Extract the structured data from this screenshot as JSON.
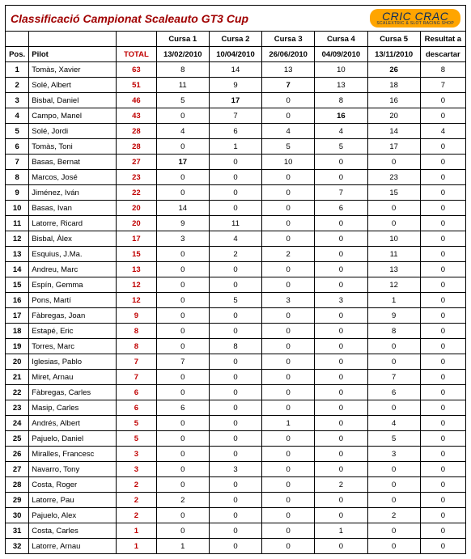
{
  "title": "Classificació Campionat Scaleauto GT3 Cup",
  "logo_main": "CRIC CRAC",
  "logo_sub": "SCALEXTRIC & SLOT RACING SHOP",
  "headers": {
    "pos": "Pos.",
    "pilot": "Pilot",
    "total": "TOTAL",
    "races_top": [
      "Cursa 1",
      "Cursa 2",
      "Cursa 3",
      "Cursa 4",
      "Cursa 5"
    ],
    "races_date": [
      "13/02/2010",
      "10/04/2010",
      "26/06/2010",
      "04/09/2010",
      "13/11/2010"
    ],
    "discard_top": "Resultat a",
    "discard_bot": "descartar"
  },
  "colors": {
    "total_text": "#c00000",
    "title_text": "#a00000",
    "logo_bg": "#ffa500",
    "logo_fg": "#0b2a5c"
  },
  "bold_cells": [
    [
      2,
      2
    ],
    [
      7,
      0
    ],
    [
      3,
      1
    ],
    [
      4,
      3
    ],
    [
      1,
      4
    ]
  ],
  "rows": [
    {
      "pos": 1,
      "pilot": "Tomàs, Xavier",
      "total": 63,
      "r": [
        8,
        14,
        "13",
        10,
        "26"
      ],
      "d": 8
    },
    {
      "pos": 2,
      "pilot": "Solé, Albert",
      "total": 51,
      "r": [
        11,
        9,
        7,
        13,
        18
      ],
      "d": 7
    },
    {
      "pos": 3,
      "pilot": "Bisbal, Daniel",
      "total": 46,
      "r": [
        5,
        "17",
        0,
        8,
        16
      ],
      "d": 0
    },
    {
      "pos": 4,
      "pilot": "Campo, Manel",
      "total": 43,
      "r": [
        0,
        7,
        0,
        "16",
        20
      ],
      "d": 0
    },
    {
      "pos": 5,
      "pilot": "Solé, Jordi",
      "total": 28,
      "r": [
        4,
        6,
        4,
        4,
        14
      ],
      "d": 4
    },
    {
      "pos": 6,
      "pilot": "Tomàs, Toni",
      "total": 28,
      "r": [
        0,
        1,
        5,
        5,
        17
      ],
      "d": 0
    },
    {
      "pos": 7,
      "pilot": "Basas, Bernat",
      "total": 27,
      "r": [
        "17",
        0,
        10,
        0,
        0
      ],
      "d": 0
    },
    {
      "pos": 8,
      "pilot": "Marcos, José",
      "total": 23,
      "r": [
        0,
        0,
        0,
        0,
        23
      ],
      "d": 0
    },
    {
      "pos": 9,
      "pilot": "Jiménez, Iván",
      "total": 22,
      "r": [
        0,
        0,
        0,
        7,
        15
      ],
      "d": 0
    },
    {
      "pos": 10,
      "pilot": "Basas, Ivan",
      "total": 20,
      "r": [
        14,
        0,
        0,
        6,
        0
      ],
      "d": 0
    },
    {
      "pos": 11,
      "pilot": "Latorre, Ricard",
      "total": 20,
      "r": [
        9,
        11,
        0,
        0,
        0
      ],
      "d": 0
    },
    {
      "pos": 12,
      "pilot": "Bisbal, Àlex",
      "total": 17,
      "r": [
        3,
        4,
        0,
        0,
        10
      ],
      "d": 0
    },
    {
      "pos": 13,
      "pilot": "Esquius, J.Ma.",
      "total": 15,
      "r": [
        0,
        2,
        2,
        0,
        11
      ],
      "d": 0
    },
    {
      "pos": 14,
      "pilot": "Andreu, Marc",
      "total": 13,
      "r": [
        0,
        0,
        0,
        0,
        13
      ],
      "d": 0
    },
    {
      "pos": 15,
      "pilot": "Espín, Gemma",
      "total": 12,
      "r": [
        0,
        0,
        0,
        0,
        12
      ],
      "d": 0
    },
    {
      "pos": 16,
      "pilot": "Pons, Martí",
      "total": 12,
      "r": [
        0,
        5,
        3,
        3,
        1
      ],
      "d": 0
    },
    {
      "pos": 17,
      "pilot": "Fàbregas, Joan",
      "total": 9,
      "r": [
        0,
        0,
        0,
        0,
        9
      ],
      "d": 0
    },
    {
      "pos": 18,
      "pilot": "Estapé, Eric",
      "total": 8,
      "r": [
        0,
        0,
        0,
        0,
        8
      ],
      "d": 0
    },
    {
      "pos": 19,
      "pilot": "Torres, Marc",
      "total": 8,
      "r": [
        0,
        8,
        0,
        0,
        0
      ],
      "d": 0
    },
    {
      "pos": 20,
      "pilot": "Iglesias, Pablo",
      "total": 7,
      "r": [
        7,
        0,
        0,
        0,
        0
      ],
      "d": 0
    },
    {
      "pos": 21,
      "pilot": "Miret, Arnau",
      "total": 7,
      "r": [
        0,
        0,
        0,
        0,
        7
      ],
      "d": 0
    },
    {
      "pos": 22,
      "pilot": "Fàbregas, Carles",
      "total": 6,
      "r": [
        0,
        0,
        0,
        0,
        6
      ],
      "d": 0
    },
    {
      "pos": 23,
      "pilot": "Masip, Carles",
      "total": 6,
      "r": [
        6,
        0,
        0,
        0,
        0
      ],
      "d": 0
    },
    {
      "pos": 24,
      "pilot": "Andrés, Albert",
      "total": 5,
      "r": [
        0,
        0,
        1,
        0,
        4
      ],
      "d": 0
    },
    {
      "pos": 25,
      "pilot": "Pajuelo, Daniel",
      "total": 5,
      "r": [
        0,
        0,
        0,
        0,
        5
      ],
      "d": 0
    },
    {
      "pos": 26,
      "pilot": "Miralles, Francesc",
      "total": 3,
      "r": [
        0,
        0,
        0,
        0,
        3
      ],
      "d": 0
    },
    {
      "pos": 27,
      "pilot": "Navarro, Tony",
      "total": 3,
      "r": [
        0,
        3,
        0,
        0,
        0
      ],
      "d": 0
    },
    {
      "pos": 28,
      "pilot": "Costa, Roger",
      "total": 2,
      "r": [
        0,
        0,
        0,
        2,
        0
      ],
      "d": 0
    },
    {
      "pos": 29,
      "pilot": "Latorre, Pau",
      "total": 2,
      "r": [
        2,
        0,
        0,
        0,
        0
      ],
      "d": 0
    },
    {
      "pos": 30,
      "pilot": "Pajuelo, Alex",
      "total": 2,
      "r": [
        0,
        0,
        0,
        0,
        2
      ],
      "d": 0
    },
    {
      "pos": 31,
      "pilot": "Costa, Carles",
      "total": 1,
      "r": [
        0,
        0,
        0,
        1,
        0
      ],
      "d": 0
    },
    {
      "pos": 32,
      "pilot": "Latorre, Arnau",
      "total": 1,
      "r": [
        1,
        0,
        0,
        0,
        0
      ],
      "d": 0
    }
  ]
}
